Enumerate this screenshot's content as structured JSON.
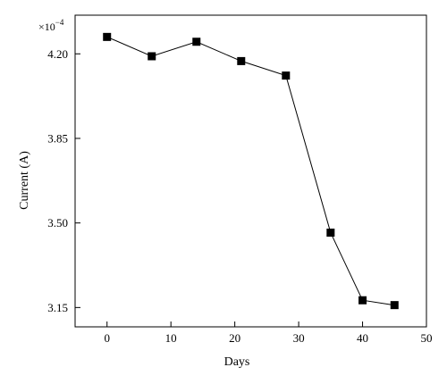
{
  "chart_data": {
    "type": "line",
    "xlabel": "Days",
    "ylabel": "Current (A)",
    "y_multiplier": "×10",
    "y_multiplier_exponent": "−4",
    "xlim": [
      -5,
      50
    ],
    "ylim": [
      3.07,
      4.36
    ],
    "x_ticks": [
      0,
      10,
      20,
      30,
      40,
      50
    ],
    "x_tick_labels": [
      "0",
      "10",
      "20",
      "30",
      "40",
      "50"
    ],
    "y_ticks": [
      3.15,
      3.5,
      3.85,
      4.2
    ],
    "y_tick_labels": [
      "3.15",
      "3.50",
      "3.85",
      "4.20"
    ],
    "grid": false,
    "marker": "square",
    "color": "#000000",
    "series": [
      {
        "x": [
          0,
          7,
          14,
          21,
          28,
          35,
          40,
          45
        ],
        "y": [
          4.27,
          4.19,
          4.25,
          4.17,
          4.11,
          3.46,
          3.18,
          3.16
        ]
      }
    ]
  }
}
